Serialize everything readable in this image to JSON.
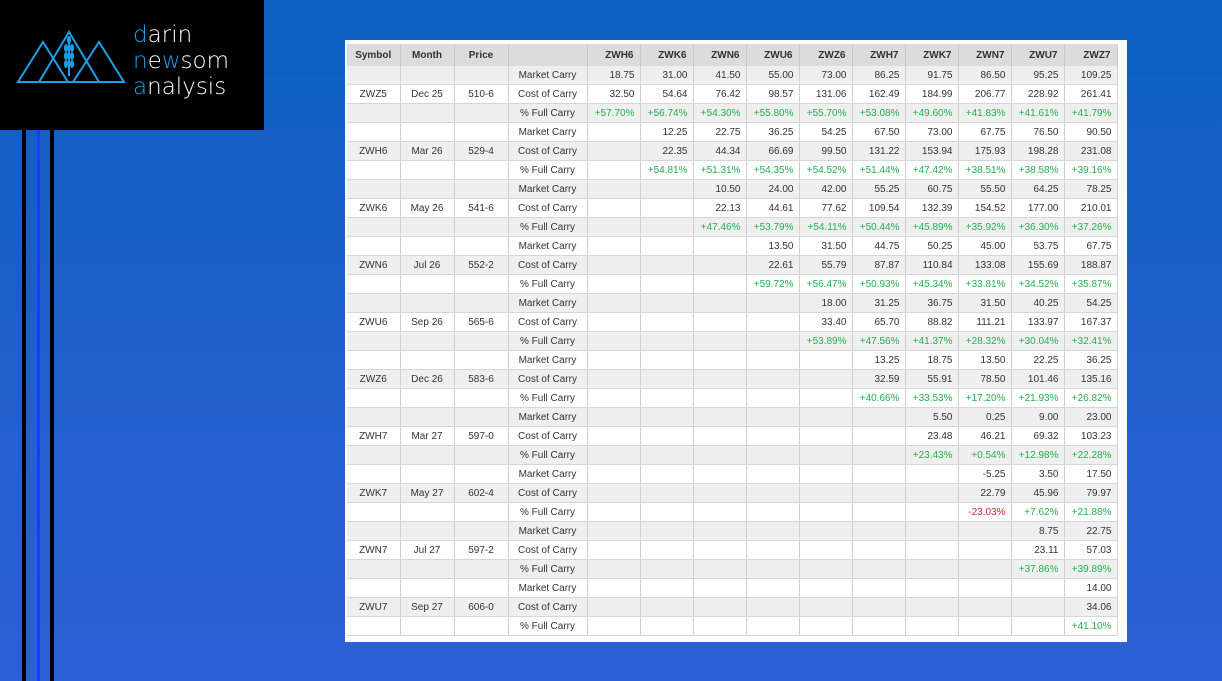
{
  "brand": {
    "line1": "darin",
    "line2": "newsom",
    "line3": "analysis",
    "accent": "#1aa0e8"
  },
  "colors": {
    "positive": "#22b14c",
    "negative": "#e0202e"
  },
  "table": {
    "headers": [
      "Symbol",
      "Month",
      "Price",
      "",
      "ZWH6",
      "ZWK6",
      "ZWN6",
      "ZWU6",
      "ZWZ6",
      "ZWH7",
      "ZWK7",
      "ZWN7",
      "ZWU7",
      "ZWZ7"
    ],
    "row_labels": [
      "Market Carry",
      "Cost of Carry",
      "% Full Carry"
    ],
    "groups": [
      {
        "symbol": "ZWZ5",
        "month": "Dec 25",
        "price": "510-6",
        "market": [
          "18.75",
          "31.00",
          "41.50",
          "55.00",
          "73.00",
          "86.25",
          "91.75",
          "86.50",
          "95.25",
          "109.25"
        ],
        "cost": [
          "32.50",
          "54.64",
          "76.42",
          "98.57",
          "131.06",
          "162.49",
          "184.99",
          "206.77",
          "228.92",
          "261.41"
        ],
        "pct": [
          "+57.70%",
          "+56.74%",
          "+54.30%",
          "+55.80%",
          "+55.70%",
          "+53.08%",
          "+49.60%",
          "+41.83%",
          "+41.61%",
          "+41.79%"
        ]
      },
      {
        "symbol": "ZWH6",
        "month": "Mar 26",
        "price": "529-4",
        "market": [
          "",
          "12.25",
          "22.75",
          "36.25",
          "54.25",
          "67.50",
          "73.00",
          "67.75",
          "76.50",
          "90.50"
        ],
        "cost": [
          "",
          "22.35",
          "44.34",
          "66.69",
          "99.50",
          "131.22",
          "153.94",
          "175.93",
          "198.28",
          "231.08"
        ],
        "pct": [
          "",
          "+54.81%",
          "+51.31%",
          "+54.35%",
          "+54.52%",
          "+51.44%",
          "+47.42%",
          "+38.51%",
          "+38.58%",
          "+39.16%"
        ]
      },
      {
        "symbol": "ZWK6",
        "month": "May 26",
        "price": "541-6",
        "market": [
          "",
          "",
          "10.50",
          "24.00",
          "42.00",
          "55.25",
          "60.75",
          "55.50",
          "64.25",
          "78.25"
        ],
        "cost": [
          "",
          "",
          "22.13",
          "44.61",
          "77.62",
          "109.54",
          "132.39",
          "154.52",
          "177.00",
          "210.01"
        ],
        "pct": [
          "",
          "",
          "+47.46%",
          "+53.79%",
          "+54.11%",
          "+50.44%",
          "+45.89%",
          "+35.92%",
          "+36.30%",
          "+37.26%"
        ]
      },
      {
        "symbol": "ZWN6",
        "month": "Jul 26",
        "price": "552-2",
        "market": [
          "",
          "",
          "",
          "13.50",
          "31.50",
          "44.75",
          "50.25",
          "45.00",
          "53.75",
          "67.75"
        ],
        "cost": [
          "",
          "",
          "",
          "22.61",
          "55.79",
          "87.87",
          "110.84",
          "133.08",
          "155.69",
          "188.87"
        ],
        "pct": [
          "",
          "",
          "",
          "+59.72%",
          "+56.47%",
          "+50.93%",
          "+45.34%",
          "+33.81%",
          "+34.52%",
          "+35.87%"
        ]
      },
      {
        "symbol": "ZWU6",
        "month": "Sep 26",
        "price": "565-6",
        "market": [
          "",
          "",
          "",
          "",
          "18.00",
          "31.25",
          "36.75",
          "31.50",
          "40.25",
          "54.25"
        ],
        "cost": [
          "",
          "",
          "",
          "",
          "33.40",
          "65.70",
          "88.82",
          "111.21",
          "133.97",
          "167.37"
        ],
        "pct": [
          "",
          "",
          "",
          "",
          "+53.89%",
          "+47.56%",
          "+41.37%",
          "+28.32%",
          "+30.04%",
          "+32.41%"
        ]
      },
      {
        "symbol": "ZWZ6",
        "month": "Dec 26",
        "price": "583-6",
        "market": [
          "",
          "",
          "",
          "",
          "",
          "13.25",
          "18.75",
          "13.50",
          "22.25",
          "36.25"
        ],
        "cost": [
          "",
          "",
          "",
          "",
          "",
          "32.59",
          "55.91",
          "78.50",
          "101.46",
          "135.16"
        ],
        "pct": [
          "",
          "",
          "",
          "",
          "",
          "+40.66%",
          "+33.53%",
          "+17.20%",
          "+21.93%",
          "+26.82%"
        ]
      },
      {
        "symbol": "ZWH7",
        "month": "Mar 27",
        "price": "597-0",
        "market": [
          "",
          "",
          "",
          "",
          "",
          "",
          "5.50",
          "0.25",
          "9.00",
          "23.00"
        ],
        "cost": [
          "",
          "",
          "",
          "",
          "",
          "",
          "23.48",
          "46.21",
          "69.32",
          "103.23"
        ],
        "pct": [
          "",
          "",
          "",
          "",
          "",
          "",
          "+23.43%",
          "+0.54%",
          "+12.98%",
          "+22.28%"
        ]
      },
      {
        "symbol": "ZWK7",
        "month": "May 27",
        "price": "602-4",
        "market": [
          "",
          "",
          "",
          "",
          "",
          "",
          "",
          "-5.25",
          "3.50",
          "17.50"
        ],
        "cost": [
          "",
          "",
          "",
          "",
          "",
          "",
          "",
          "22.79",
          "45.96",
          "79.97"
        ],
        "pct": [
          "",
          "",
          "",
          "",
          "",
          "",
          "",
          "-23.03%",
          "+7.62%",
          "+21.88%"
        ]
      },
      {
        "symbol": "ZWN7",
        "month": "Jul 27",
        "price": "597-2",
        "market": [
          "",
          "",
          "",
          "",
          "",
          "",
          "",
          "",
          "8.75",
          "22.75"
        ],
        "cost": [
          "",
          "",
          "",
          "",
          "",
          "",
          "",
          "",
          "23.11",
          "57.03"
        ],
        "pct": [
          "",
          "",
          "",
          "",
          "",
          "",
          "",
          "",
          "+37.86%",
          "+39.89%"
        ]
      },
      {
        "symbol": "ZWU7",
        "month": "Sep 27",
        "price": "606-0",
        "market": [
          "",
          "",
          "",
          "",
          "",
          "",
          "",
          "",
          "",
          "14.00"
        ],
        "cost": [
          "",
          "",
          "",
          "",
          "",
          "",
          "",
          "",
          "",
          "34.06"
        ],
        "pct": [
          "",
          "",
          "",
          "",
          "",
          "",
          "",
          "",
          "",
          "+41.10%"
        ]
      }
    ]
  }
}
